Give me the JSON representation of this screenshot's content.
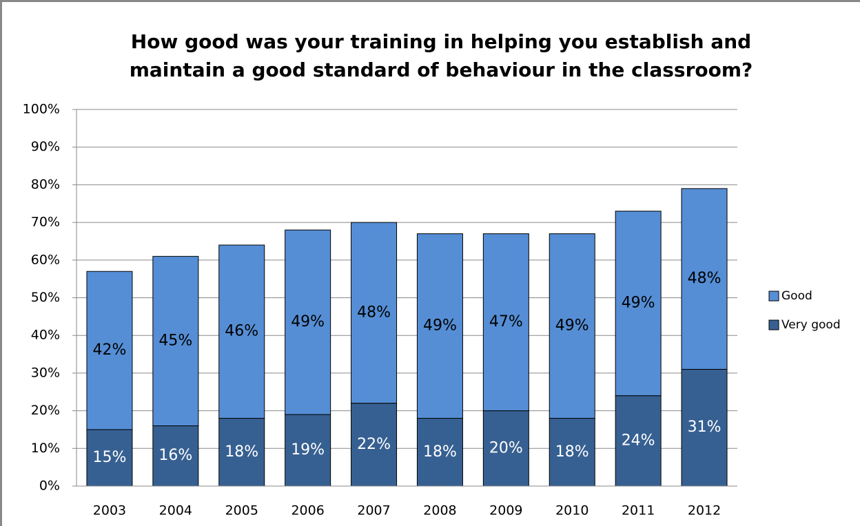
{
  "chart_data": {
    "type": "stacked_bar",
    "title": [
      "How good was your training in helping you establish and",
      "maintain a good standard of behaviour in the classroom?"
    ],
    "categories": [
      "2003",
      "2004",
      "2005",
      "2006",
      "2007",
      "2008",
      "2009",
      "2010",
      "2011",
      "2012"
    ],
    "series": [
      {
        "name": "Very good",
        "color": "#376092",
        "label_color": "#ffffff",
        "values": [
          15,
          16,
          18,
          19,
          22,
          18,
          20,
          18,
          24,
          31
        ],
        "value_labels": [
          "15%",
          "16%",
          "18%",
          "19%",
          "22%",
          "18%",
          "20%",
          "18%",
          "24%",
          "31%"
        ]
      },
      {
        "name": "Good",
        "color": "#558ed5",
        "label_color": "#000000",
        "values": [
          42,
          45,
          46,
          49,
          48,
          49,
          47,
          49,
          49,
          48
        ],
        "value_labels": [
          "42%",
          "45%",
          "46%",
          "49%",
          "48%",
          "49%",
          "47%",
          "49%",
          "49%",
          "48%"
        ]
      }
    ],
    "ylim": [
      0,
      100
    ],
    "yticks": [
      {
        "value": 0,
        "label": "0%"
      },
      {
        "value": 10,
        "label": "10%"
      },
      {
        "value": 20,
        "label": "20%"
      },
      {
        "value": 30,
        "label": "30%"
      },
      {
        "value": 40,
        "label": "40%"
      },
      {
        "value": 50,
        "label": "50%"
      },
      {
        "value": 60,
        "label": "60%"
      },
      {
        "value": 70,
        "label": "70%"
      },
      {
        "value": 80,
        "label": "80%"
      },
      {
        "value": 90,
        "label": "90%"
      },
      {
        "value": 100,
        "label": "100%"
      }
    ],
    "grid": true,
    "legend": "right"
  }
}
